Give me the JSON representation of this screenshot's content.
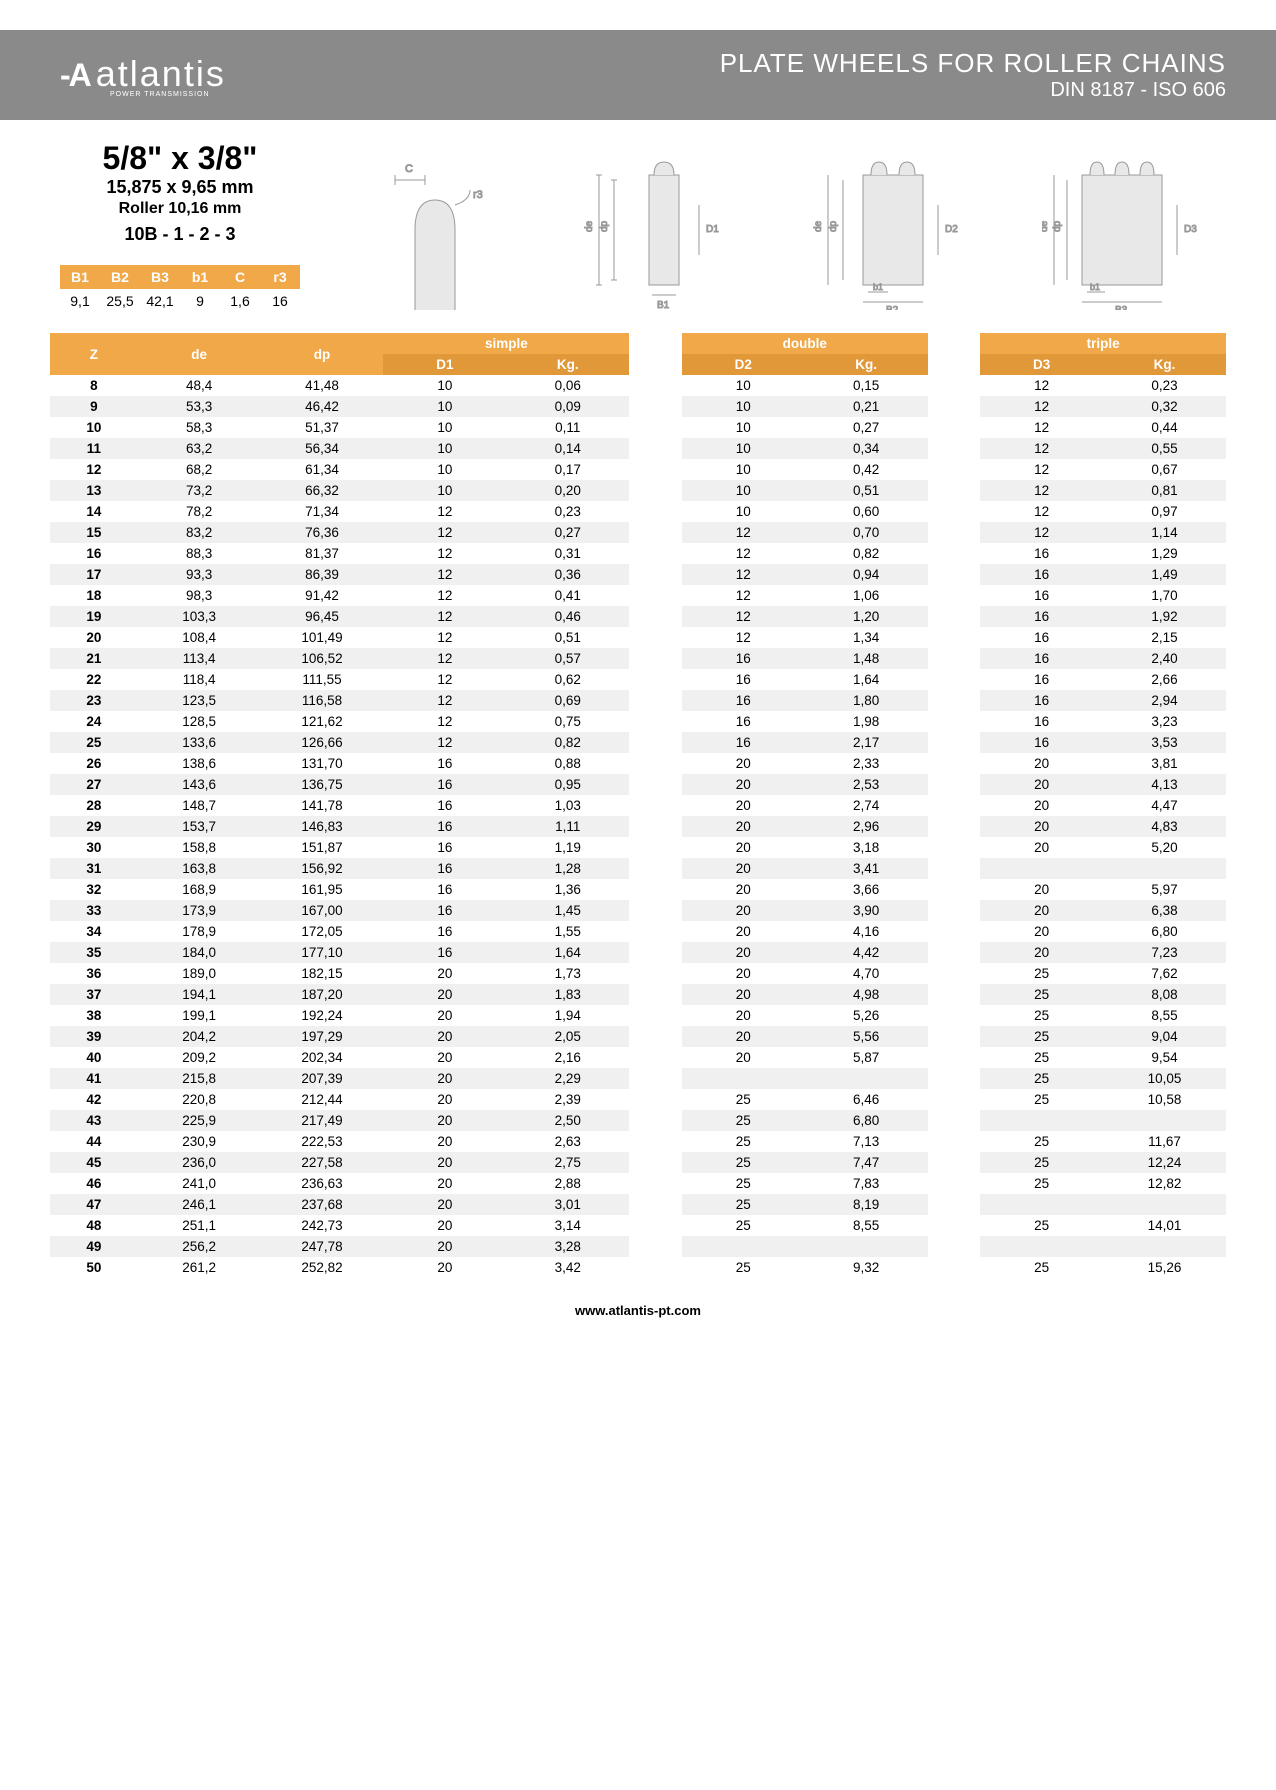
{
  "header": {
    "logo_text": "atlantis",
    "logo_sub": "POWER TRANSMISSION",
    "title_main": "PLATE WHEELS FOR ROLLER CHAINS",
    "title_sub": "DIN 8187 - ISO 606"
  },
  "spec": {
    "main": "5/8\" x 3/8\"",
    "mm": "15,875 x 9,65 mm",
    "roller": "Roller 10,16 mm",
    "code": "10B - 1 - 2 - 3"
  },
  "small_table": {
    "headers": [
      "B1",
      "B2",
      "B3",
      "b1",
      "C",
      "r3"
    ],
    "values": [
      "9,1",
      "25,5",
      "42,1",
      "9",
      "1,6",
      "16"
    ]
  },
  "table_headers": {
    "z": "Z",
    "de": "de",
    "dp": "dp",
    "simple": "simple",
    "double": "double",
    "triple": "triple",
    "d1": "D1",
    "d2": "D2",
    "d3": "D3",
    "kg": "Kg."
  },
  "rows": [
    {
      "z": "8",
      "de": "48,4",
      "dp": "41,48",
      "d1": "10",
      "kg1": "0,06",
      "d2": "10",
      "kg2": "0,15",
      "d3": "12",
      "kg3": "0,23"
    },
    {
      "z": "9",
      "de": "53,3",
      "dp": "46,42",
      "d1": "10",
      "kg1": "0,09",
      "d2": "10",
      "kg2": "0,21",
      "d3": "12",
      "kg3": "0,32"
    },
    {
      "z": "10",
      "de": "58,3",
      "dp": "51,37",
      "d1": "10",
      "kg1": "0,11",
      "d2": "10",
      "kg2": "0,27",
      "d3": "12",
      "kg3": "0,44"
    },
    {
      "z": "11",
      "de": "63,2",
      "dp": "56,34",
      "d1": "10",
      "kg1": "0,14",
      "d2": "10",
      "kg2": "0,34",
      "d3": "12",
      "kg3": "0,55"
    },
    {
      "z": "12",
      "de": "68,2",
      "dp": "61,34",
      "d1": "10",
      "kg1": "0,17",
      "d2": "10",
      "kg2": "0,42",
      "d3": "12",
      "kg3": "0,67"
    },
    {
      "z": "13",
      "de": "73,2",
      "dp": "66,32",
      "d1": "10",
      "kg1": "0,20",
      "d2": "10",
      "kg2": "0,51",
      "d3": "12",
      "kg3": "0,81"
    },
    {
      "z": "14",
      "de": "78,2",
      "dp": "71,34",
      "d1": "12",
      "kg1": "0,23",
      "d2": "10",
      "kg2": "0,60",
      "d3": "12",
      "kg3": "0,97"
    },
    {
      "z": "15",
      "de": "83,2",
      "dp": "76,36",
      "d1": "12",
      "kg1": "0,27",
      "d2": "12",
      "kg2": "0,70",
      "d3": "12",
      "kg3": "1,14"
    },
    {
      "z": "16",
      "de": "88,3",
      "dp": "81,37",
      "d1": "12",
      "kg1": "0,31",
      "d2": "12",
      "kg2": "0,82",
      "d3": "16",
      "kg3": "1,29"
    },
    {
      "z": "17",
      "de": "93,3",
      "dp": "86,39",
      "d1": "12",
      "kg1": "0,36",
      "d2": "12",
      "kg2": "0,94",
      "d3": "16",
      "kg3": "1,49"
    },
    {
      "z": "18",
      "de": "98,3",
      "dp": "91,42",
      "d1": "12",
      "kg1": "0,41",
      "d2": "12",
      "kg2": "1,06",
      "d3": "16",
      "kg3": "1,70"
    },
    {
      "z": "19",
      "de": "103,3",
      "dp": "96,45",
      "d1": "12",
      "kg1": "0,46",
      "d2": "12",
      "kg2": "1,20",
      "d3": "16",
      "kg3": "1,92"
    },
    {
      "z": "20",
      "de": "108,4",
      "dp": "101,49",
      "d1": "12",
      "kg1": "0,51",
      "d2": "12",
      "kg2": "1,34",
      "d3": "16",
      "kg3": "2,15"
    },
    {
      "z": "21",
      "de": "113,4",
      "dp": "106,52",
      "d1": "12",
      "kg1": "0,57",
      "d2": "16",
      "kg2": "1,48",
      "d3": "16",
      "kg3": "2,40"
    },
    {
      "z": "22",
      "de": "118,4",
      "dp": "111,55",
      "d1": "12",
      "kg1": "0,62",
      "d2": "16",
      "kg2": "1,64",
      "d3": "16",
      "kg3": "2,66"
    },
    {
      "z": "23",
      "de": "123,5",
      "dp": "116,58",
      "d1": "12",
      "kg1": "0,69",
      "d2": "16",
      "kg2": "1,80",
      "d3": "16",
      "kg3": "2,94"
    },
    {
      "z": "24",
      "de": "128,5",
      "dp": "121,62",
      "d1": "12",
      "kg1": "0,75",
      "d2": "16",
      "kg2": "1,98",
      "d3": "16",
      "kg3": "3,23"
    },
    {
      "z": "25",
      "de": "133,6",
      "dp": "126,66",
      "d1": "12",
      "kg1": "0,82",
      "d2": "16",
      "kg2": "2,17",
      "d3": "16",
      "kg3": "3,53"
    },
    {
      "z": "26",
      "de": "138,6",
      "dp": "131,70",
      "d1": "16",
      "kg1": "0,88",
      "d2": "20",
      "kg2": "2,33",
      "d3": "20",
      "kg3": "3,81"
    },
    {
      "z": "27",
      "de": "143,6",
      "dp": "136,75",
      "d1": "16",
      "kg1": "0,95",
      "d2": "20",
      "kg2": "2,53",
      "d3": "20",
      "kg3": "4,13"
    },
    {
      "z": "28",
      "de": "148,7",
      "dp": "141,78",
      "d1": "16",
      "kg1": "1,03",
      "d2": "20",
      "kg2": "2,74",
      "d3": "20",
      "kg3": "4,47"
    },
    {
      "z": "29",
      "de": "153,7",
      "dp": "146,83",
      "d1": "16",
      "kg1": "1,11",
      "d2": "20",
      "kg2": "2,96",
      "d3": "20",
      "kg3": "4,83"
    },
    {
      "z": "30",
      "de": "158,8",
      "dp": "151,87",
      "d1": "16",
      "kg1": "1,19",
      "d2": "20",
      "kg2": "3,18",
      "d3": "20",
      "kg3": "5,20"
    },
    {
      "z": "31",
      "de": "163,8",
      "dp": "156,92",
      "d1": "16",
      "kg1": "1,28",
      "d2": "20",
      "kg2": "3,41",
      "d3": "",
      "kg3": ""
    },
    {
      "z": "32",
      "de": "168,9",
      "dp": "161,95",
      "d1": "16",
      "kg1": "1,36",
      "d2": "20",
      "kg2": "3,66",
      "d3": "20",
      "kg3": "5,97"
    },
    {
      "z": "33",
      "de": "173,9",
      "dp": "167,00",
      "d1": "16",
      "kg1": "1,45",
      "d2": "20",
      "kg2": "3,90",
      "d3": "20",
      "kg3": "6,38"
    },
    {
      "z": "34",
      "de": "178,9",
      "dp": "172,05",
      "d1": "16",
      "kg1": "1,55",
      "d2": "20",
      "kg2": "4,16",
      "d3": "20",
      "kg3": "6,80"
    },
    {
      "z": "35",
      "de": "184,0",
      "dp": "177,10",
      "d1": "16",
      "kg1": "1,64",
      "d2": "20",
      "kg2": "4,42",
      "d3": "20",
      "kg3": "7,23"
    },
    {
      "z": "36",
      "de": "189,0",
      "dp": "182,15",
      "d1": "20",
      "kg1": "1,73",
      "d2": "20",
      "kg2": "4,70",
      "d3": "25",
      "kg3": "7,62"
    },
    {
      "z": "37",
      "de": "194,1",
      "dp": "187,20",
      "d1": "20",
      "kg1": "1,83",
      "d2": "20",
      "kg2": "4,98",
      "d3": "25",
      "kg3": "8,08"
    },
    {
      "z": "38",
      "de": "199,1",
      "dp": "192,24",
      "d1": "20",
      "kg1": "1,94",
      "d2": "20",
      "kg2": "5,26",
      "d3": "25",
      "kg3": "8,55"
    },
    {
      "z": "39",
      "de": "204,2",
      "dp": "197,29",
      "d1": "20",
      "kg1": "2,05",
      "d2": "20",
      "kg2": "5,56",
      "d3": "25",
      "kg3": "9,04"
    },
    {
      "z": "40",
      "de": "209,2",
      "dp": "202,34",
      "d1": "20",
      "kg1": "2,16",
      "d2": "20",
      "kg2": "5,87",
      "d3": "25",
      "kg3": "9,54"
    },
    {
      "z": "41",
      "de": "215,8",
      "dp": "207,39",
      "d1": "20",
      "kg1": "2,29",
      "d2": "",
      "kg2": "",
      "d3": "25",
      "kg3": "10,05"
    },
    {
      "z": "42",
      "de": "220,8",
      "dp": "212,44",
      "d1": "20",
      "kg1": "2,39",
      "d2": "25",
      "kg2": "6,46",
      "d3": "25",
      "kg3": "10,58"
    },
    {
      "z": "43",
      "de": "225,9",
      "dp": "217,49",
      "d1": "20",
      "kg1": "2,50",
      "d2": "25",
      "kg2": "6,80",
      "d3": "",
      "kg3": ""
    },
    {
      "z": "44",
      "de": "230,9",
      "dp": "222,53",
      "d1": "20",
      "kg1": "2,63",
      "d2": "25",
      "kg2": "7,13",
      "d3": "25",
      "kg3": "11,67"
    },
    {
      "z": "45",
      "de": "236,0",
      "dp": "227,58",
      "d1": "20",
      "kg1": "2,75",
      "d2": "25",
      "kg2": "7,47",
      "d3": "25",
      "kg3": "12,24"
    },
    {
      "z": "46",
      "de": "241,0",
      "dp": "236,63",
      "d1": "20",
      "kg1": "2,88",
      "d2": "25",
      "kg2": "7,83",
      "d3": "25",
      "kg3": "12,82"
    },
    {
      "z": "47",
      "de": "246,1",
      "dp": "237,68",
      "d1": "20",
      "kg1": "3,01",
      "d2": "25",
      "kg2": "8,19",
      "d3": "",
      "kg3": ""
    },
    {
      "z": "48",
      "de": "251,1",
      "dp": "242,73",
      "d1": "20",
      "kg1": "3,14",
      "d2": "25",
      "kg2": "8,55",
      "d3": "25",
      "kg3": "14,01"
    },
    {
      "z": "49",
      "de": "256,2",
      "dp": "247,78",
      "d1": "20",
      "kg1": "3,28",
      "d2": "",
      "kg2": "",
      "d3": "",
      "kg3": ""
    },
    {
      "z": "50",
      "de": "261,2",
      "dp": "252,82",
      "d1": "20",
      "kg1": "3,42",
      "d2": "25",
      "kg2": "9,32",
      "d3": "25",
      "kg3": "15,26"
    }
  ],
  "footer": "www.atlantis-pt.com",
  "colors": {
    "header_bg": "#8a8a8a",
    "orange_light": "#f0a848",
    "orange_dark": "#e09838",
    "row_stripe": "#f0f0f0"
  }
}
